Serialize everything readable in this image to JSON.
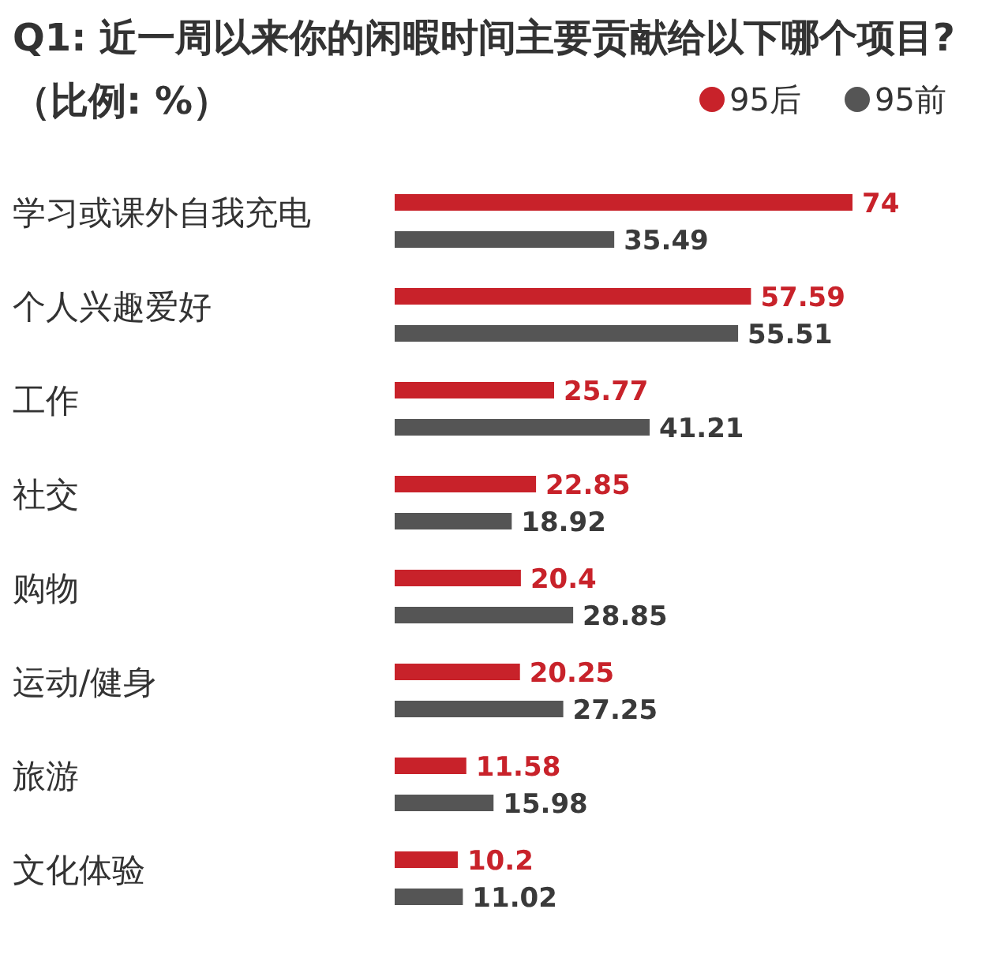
{
  "chart_data": {
    "type": "bar",
    "orientation": "horizontal",
    "title": "Q1: 近一周以来你的闲暇时间主要贡献给以下哪个项目?（比例: %）",
    "categories": [
      "学习或课外自我充电",
      "个人兴趣爱好",
      "工作",
      "社交",
      "购物",
      "运动/健身",
      "旅游",
      "文化体验"
    ],
    "series": [
      {
        "name": "95后",
        "color": "#c8222a",
        "values": [
          74,
          57.59,
          25.77,
          22.85,
          20.4,
          20.25,
          11.58,
          10.2
        ]
      },
      {
        "name": "95前",
        "color": "#555555",
        "values": [
          35.49,
          55.51,
          41.21,
          18.92,
          28.85,
          27.25,
          15.98,
          11.02
        ]
      }
    ],
    "data_labels": true,
    "legend": "top right"
  }
}
